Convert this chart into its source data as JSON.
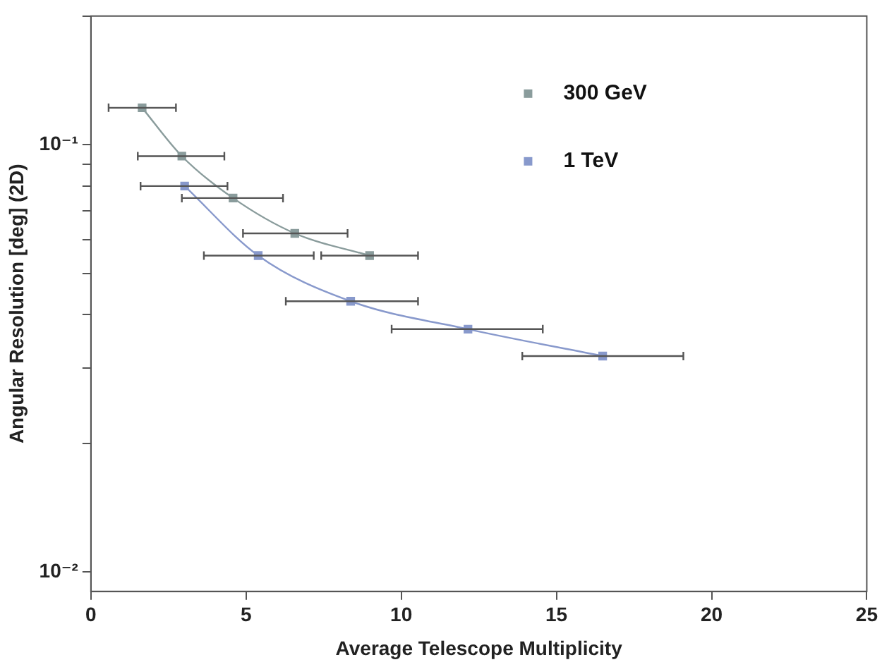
{
  "chart_data": {
    "type": "line",
    "xlabel": "Average Telescope Multiplicity",
    "ylabel": "Angular Resolution [deg] (2D)",
    "log": "y",
    "grid": false,
    "legend": "top right",
    "marker": "square",
    "xlim": [
      0,
      25
    ],
    "xticks": [
      0,
      5,
      10,
      15,
      20,
      25
    ],
    "ylim": [
      0.009,
      0.2
    ],
    "yticks": [
      {
        "value": 0.01,
        "label": "10⁻²"
      },
      {
        "value": 0.02,
        "label": null
      },
      {
        "value": 0.03,
        "label": null
      },
      {
        "value": 0.04,
        "label": null
      },
      {
        "value": 0.05,
        "label": null
      },
      {
        "value": 0.06,
        "label": null
      },
      {
        "value": 0.07,
        "label": null
      },
      {
        "value": 0.08,
        "label": null
      },
      {
        "value": 0.09,
        "label": null
      },
      {
        "value": 0.1,
        "label": "10⁻¹"
      },
      {
        "value": 0.2,
        "label": null
      }
    ],
    "series": [
      {
        "name": "300 GeV",
        "color": "#8a9c9c",
        "x": [
          1.65,
          2.93,
          4.58,
          6.57,
          8.98
        ],
        "values": [
          0.122,
          0.094,
          0.075,
          0.062,
          0.055
        ],
        "xerrors": [
          [
            0.57,
            2.74
          ],
          [
            1.51,
            4.3
          ],
          [
            2.93,
            6.19
          ],
          [
            4.9,
            8.27
          ],
          [
            7.42,
            10.54
          ]
        ]
      },
      {
        "name": "1 TeV",
        "color": "#8899cc",
        "x": [
          3.02,
          5.39,
          8.37,
          12.15,
          16.49
        ],
        "values": [
          0.08,
          0.055,
          0.043,
          0.037,
          0.032
        ],
        "xerrors": [
          [
            1.6,
            4.4
          ],
          [
            3.64,
            7.18
          ],
          [
            6.28,
            10.54
          ],
          [
            9.69,
            14.56
          ],
          [
            13.9,
            19.09
          ]
        ]
      }
    ]
  }
}
